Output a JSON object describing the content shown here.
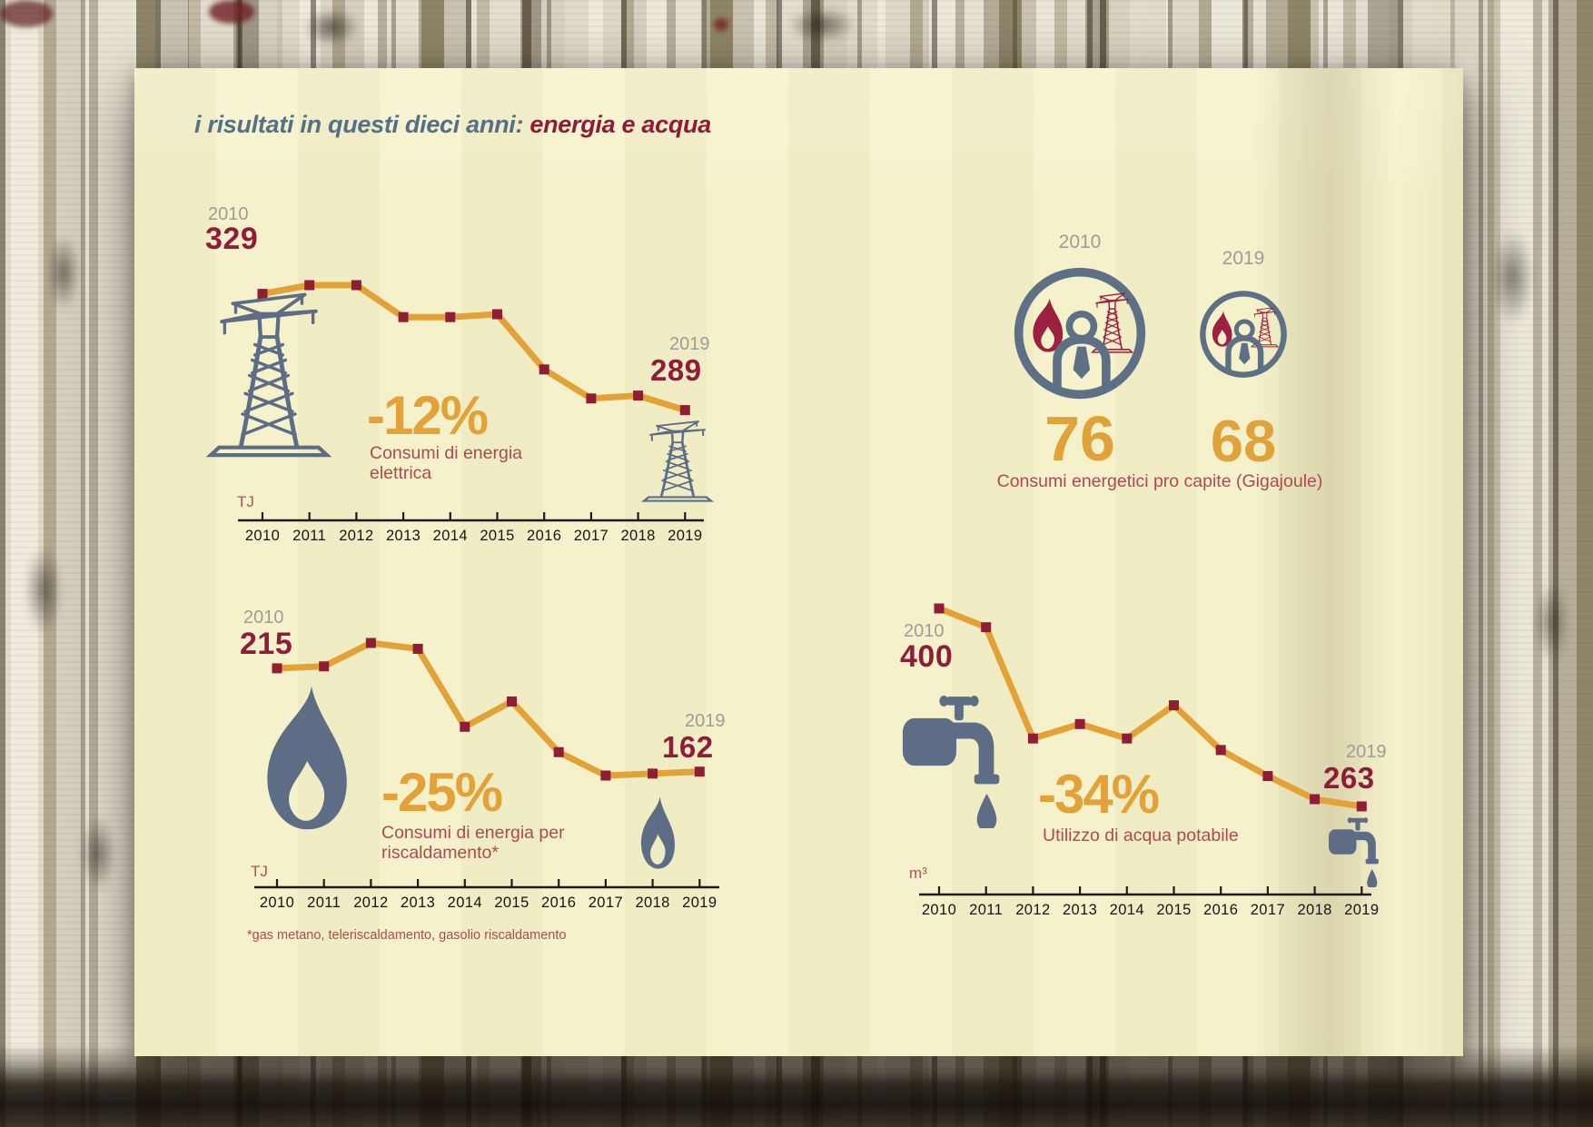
{
  "title": {
    "left": "i risultati in questi dieci anni:",
    "right": " energia e acqua"
  },
  "chart_data": [
    {
      "type": "line",
      "title": "Consumi di energia elettrica",
      "caption": [
        "Consumi di energia",
        "elettrica"
      ],
      "delta": "-12%",
      "unit": "TJ",
      "icon": "transmission-pylon-icon",
      "years": [
        "2010",
        "2011",
        "2012",
        "2013",
        "2014",
        "2015",
        "2016",
        "2017",
        "2018",
        "2019"
      ],
      "values": [
        329,
        332,
        332,
        321,
        321,
        322,
        303,
        293,
        294,
        289
      ],
      "start": {
        "year": "2010",
        "value": "329"
      },
      "end": {
        "year": "2019",
        "value": "289"
      },
      "ylim": [
        280,
        340
      ],
      "line_color": "#e3a238",
      "marker_color": "#8e1d35"
    },
    {
      "type": "line",
      "title": "Consumi di energia per riscaldamento*",
      "caption": [
        "Consumi di energia per",
        "riscaldamento*"
      ],
      "delta": "-25%",
      "unit": "TJ",
      "icon": "flame-icon",
      "years": [
        "2010",
        "2011",
        "2012",
        "2013",
        "2014",
        "2015",
        "2016",
        "2017",
        "2018",
        "2019"
      ],
      "values": [
        215,
        216,
        228,
        225,
        185,
        198,
        172,
        160,
        161,
        162
      ],
      "start": {
        "year": "2010",
        "value": "215"
      },
      "end": {
        "year": "2019",
        "value": "162"
      },
      "footnote": "*gas metano, teleriscaldamento, gasolio riscaldamento",
      "ylim": [
        150,
        240
      ],
      "line_color": "#e3a238",
      "marker_color": "#8e1d35"
    },
    {
      "type": "line",
      "title": "Utilizzo di acqua potabile",
      "caption": [
        "Utilizzo di acqua potabile"
      ],
      "delta": "-34%",
      "unit": "m³",
      "icon": "faucet-drop-icon",
      "years": [
        "2010",
        "2011",
        "2012",
        "2013",
        "2014",
        "2015",
        "2016",
        "2017",
        "2018",
        "2019"
      ],
      "values": [
        400,
        387,
        310,
        320,
        310,
        333,
        302,
        284,
        268,
        263
      ],
      "start": {
        "year": "2010",
        "value": "400"
      },
      "end": {
        "year": "2019",
        "value": "263"
      },
      "ylim": [
        250,
        410
      ],
      "line_color": "#e3a238",
      "marker_color": "#8e1d35"
    },
    {
      "type": "pictogram",
      "title": "Consumi energetici pro capite (Gigajoule)",
      "icon": "energy-person-badge-icon",
      "categories": [
        "2010",
        "2019"
      ],
      "values": [
        76,
        68
      ]
    }
  ],
  "colors": {
    "accent_orange": "#e3a238",
    "maroon": "#8e1d3a",
    "caption_red": "#ac4a53",
    "icon_blue_gray": "#5c6d85",
    "badge_maroon": "#9c2140",
    "year_gray": "#9c9c9a",
    "page_cream": "#f5f2cb",
    "title_blue": "#547089"
  }
}
